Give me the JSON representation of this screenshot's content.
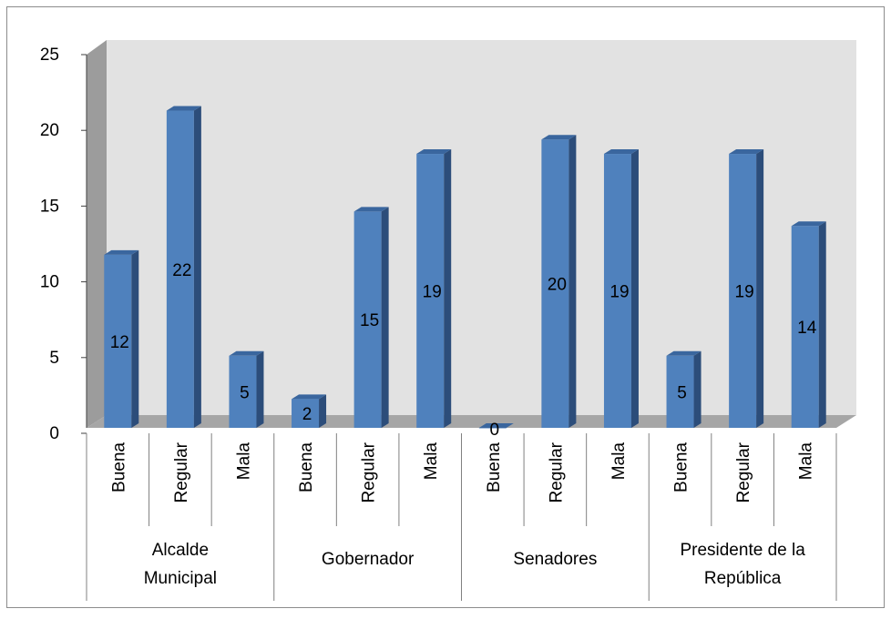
{
  "chart_data": {
    "type": "bar",
    "groups": [
      {
        "label": "Alcalde Municipal",
        "lines": [
          "Alcalde",
          "Municipal"
        ]
      },
      {
        "label": "Gobernador",
        "lines": [
          "Gobernador"
        ]
      },
      {
        "label": "Senadores",
        "lines": [
          "Senadores"
        ]
      },
      {
        "label": "Presidente de la República",
        "lines": [
          "Presidente de la",
          "República"
        ]
      }
    ],
    "categories": [
      "Buena",
      "Regular",
      "Mala",
      "Buena",
      "Regular",
      "Mala",
      "Buena",
      "Regular",
      "Mala",
      "Buena",
      "Regular",
      "Mala"
    ],
    "values": [
      12,
      22,
      5,
      2,
      15,
      19,
      0,
      20,
      19,
      5,
      19,
      14
    ],
    "data_labels": [
      "12",
      "22",
      "5",
      "2",
      "15",
      "19",
      "0",
      "20",
      "19",
      "5",
      "19",
      "14"
    ],
    "yticks": [
      "0",
      "5",
      "10",
      "15",
      "20",
      "25"
    ],
    "ylim": [
      0,
      25
    ],
    "grid": false,
    "legend": "none",
    "colors": {
      "bar_front": "#4F81BD",
      "bar_side": "#2C4D7A",
      "bar_top": "#3A669E",
      "wall": "#E2E2E2",
      "floor": "#A6A6A6",
      "frame": "#8C8C8C"
    }
  }
}
